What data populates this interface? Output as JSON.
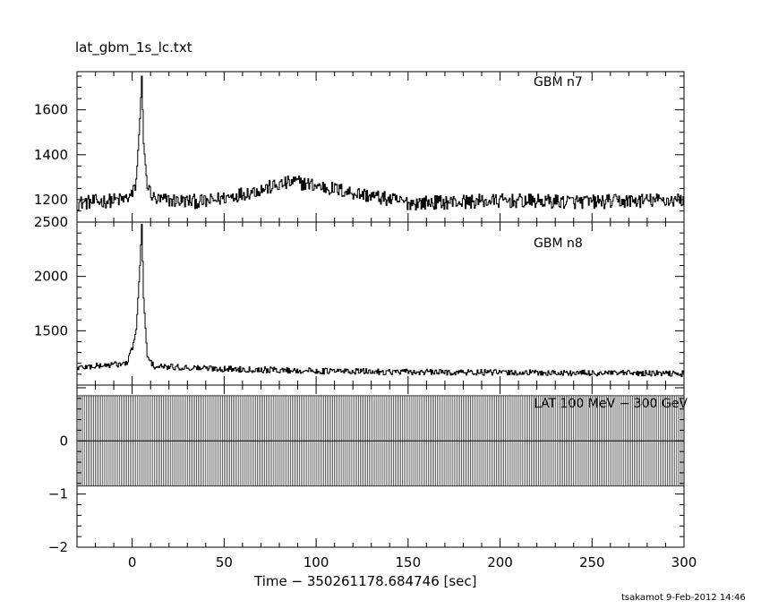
{
  "figure": {
    "title": "lat_gbm_1s_lc.txt",
    "xlabel": "Time − 350261178.684746 [sec]",
    "footer": "tsakamot  9-Feb-2012 14:46"
  },
  "chart_data": [
    {
      "type": "line",
      "title": "",
      "panel_label": "GBM n7",
      "xlabel": "Time − 350261178.684746 [sec]",
      "ylabel": "",
      "xlim": [
        -30,
        300
      ],
      "ylim": [
        1100,
        1770
      ],
      "x_ticks": [
        0,
        50,
        100,
        150,
        200,
        250,
        300
      ],
      "y_ticks": [
        1200,
        1400,
        1600
      ],
      "baseline": 1190,
      "noise_amplitude": 32,
      "peak": {
        "x": 5,
        "y": 1750
      },
      "secondary_bump": {
        "x": 88,
        "y": 1280
      },
      "series": [
        {
          "name": "GBM n7",
          "x": [
            -30,
            -5,
            0,
            2,
            4,
            5,
            6,
            8,
            12,
            40,
            88,
            150,
            200,
            250,
            300
          ],
          "values": [
            1185,
            1200,
            1220,
            1280,
            1560,
            1750,
            1450,
            1260,
            1200,
            1190,
            1280,
            1185,
            1195,
            1190,
            1200
          ]
        }
      ]
    },
    {
      "type": "line",
      "title": "",
      "panel_label": "GBM n8",
      "xlabel": "Time − 350261178.684746 [sec]",
      "ylabel": "",
      "xlim": [
        -30,
        300
      ],
      "ylim": [
        1000,
        2500
      ],
      "x_ticks": [
        0,
        50,
        100,
        150,
        200,
        250,
        300
      ],
      "y_ticks": [
        1500,
        2000,
        2500
      ],
      "baseline": 1120,
      "noise_amplitude": 28,
      "peak": {
        "x": 5,
        "y": 2480
      },
      "series": [
        {
          "name": "GBM n8",
          "x": [
            -30,
            -3,
            0,
            2,
            4,
            5,
            6,
            8,
            12,
            50,
            100,
            150,
            200,
            250,
            300
          ],
          "values": [
            1160,
            1200,
            1350,
            1500,
            2100,
            2480,
            1800,
            1250,
            1170,
            1150,
            1130,
            1120,
            1115,
            1110,
            1105
          ]
        }
      ]
    },
    {
      "type": "bar",
      "title": "",
      "panel_label": "LAT 100 MeV − 300 GeV",
      "xlabel": "Time − 350261178.684746 [sec]",
      "ylabel": "",
      "xlim": [
        -30,
        300
      ],
      "ylim": [
        -2,
        1.05
      ],
      "x_ticks": [
        0,
        50,
        100,
        150,
        200,
        250,
        300
      ],
      "y_ticks": [
        -2,
        -1,
        0
      ],
      "bin_width_sec": 1,
      "series": [
        {
          "name": "LAT 100 MeV − 300 GeV",
          "value": 0,
          "error_bar": [
            -0.85,
            0.85
          ]
        }
      ]
    }
  ]
}
